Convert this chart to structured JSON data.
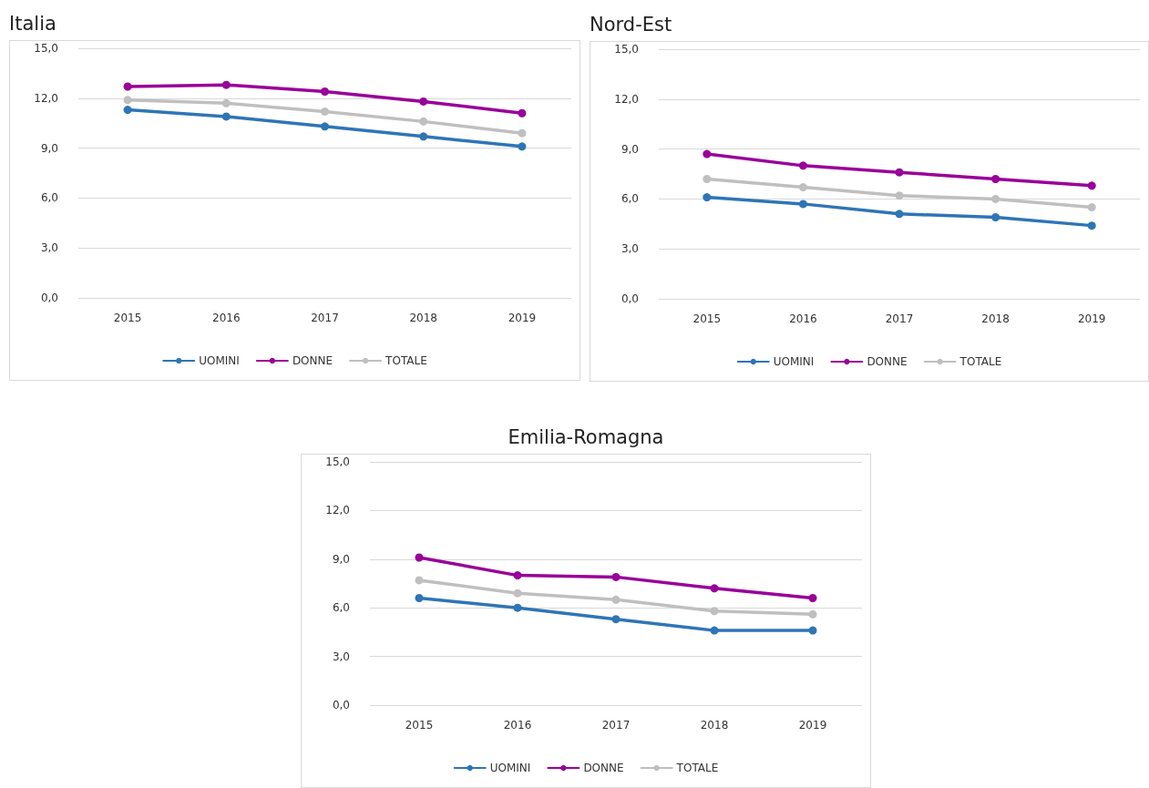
{
  "chart_data": [
    {
      "type": "line",
      "title": "Italia",
      "categories": [
        "2015",
        "2016",
        "2017",
        "2018",
        "2019"
      ],
      "series": [
        {
          "name": "UOMINI",
          "color": "#2e75b6",
          "values": [
            11.3,
            10.9,
            10.3,
            9.7,
            9.1
          ]
        },
        {
          "name": "DONNE",
          "color": "#990099",
          "values": [
            12.7,
            12.8,
            12.4,
            11.8,
            11.1
          ]
        },
        {
          "name": "TOTALE",
          "color": "#bfbfbf",
          "values": [
            11.9,
            11.7,
            11.2,
            10.6,
            9.9
          ]
        }
      ],
      "ylim": [
        0,
        15
      ],
      "yticks": [
        {
          "value": 0,
          "label": "0,0"
        },
        {
          "value": 3,
          "label": "3,0"
        },
        {
          "value": 6,
          "label": "6,0"
        },
        {
          "value": 9,
          "label": "9,0"
        },
        {
          "value": 12,
          "label": "12,0"
        },
        {
          "value": 15,
          "label": "15,0"
        }
      ],
      "grid": "y",
      "legend": "bottom",
      "marker": "circle",
      "line_style": "solid"
    },
    {
      "type": "line",
      "title": "Nord-Est",
      "categories": [
        "2015",
        "2016",
        "2017",
        "2018",
        "2019"
      ],
      "series": [
        {
          "name": "UOMINI",
          "color": "#2e75b6",
          "values": [
            6.1,
            5.7,
            5.1,
            4.9,
            4.4
          ]
        },
        {
          "name": "DONNE",
          "color": "#990099",
          "values": [
            8.7,
            8.0,
            7.6,
            7.2,
            6.8
          ]
        },
        {
          "name": "TOTALE",
          "color": "#bfbfbf",
          "values": [
            7.2,
            6.7,
            6.2,
            6.0,
            5.5
          ]
        }
      ],
      "ylim": [
        0,
        15
      ],
      "yticks": [
        {
          "value": 0,
          "label": "0,0"
        },
        {
          "value": 3,
          "label": "3,0"
        },
        {
          "value": 6,
          "label": "6,0"
        },
        {
          "value": 9,
          "label": "9,0"
        },
        {
          "value": 12,
          "label": "12,0"
        },
        {
          "value": 15,
          "label": "15,0"
        }
      ],
      "grid": "y",
      "legend": "bottom",
      "marker": "circle",
      "line_style": "solid"
    },
    {
      "type": "line",
      "title": "Emilia-Romagna",
      "categories": [
        "2015",
        "2016",
        "2017",
        "2018",
        "2019"
      ],
      "series": [
        {
          "name": "UOMINI",
          "color": "#2e75b6",
          "values": [
            6.6,
            6.0,
            5.3,
            4.6,
            4.6
          ]
        },
        {
          "name": "DONNE",
          "color": "#990099",
          "values": [
            9.1,
            8.0,
            7.9,
            7.2,
            6.6
          ]
        },
        {
          "name": "TOTALE",
          "color": "#bfbfbf",
          "values": [
            7.7,
            6.9,
            6.5,
            5.8,
            5.6
          ]
        }
      ],
      "ylim": [
        0,
        15
      ],
      "yticks": [
        {
          "value": 0,
          "label": "0,0"
        },
        {
          "value": 3,
          "label": "3,0"
        },
        {
          "value": 6,
          "label": "6,0"
        },
        {
          "value": 9,
          "label": "9,0"
        },
        {
          "value": 12,
          "label": "12,0"
        },
        {
          "value": 15,
          "label": "15,0"
        }
      ],
      "grid": "y",
      "legend": "bottom",
      "marker": "circle",
      "line_style": "solid"
    }
  ]
}
